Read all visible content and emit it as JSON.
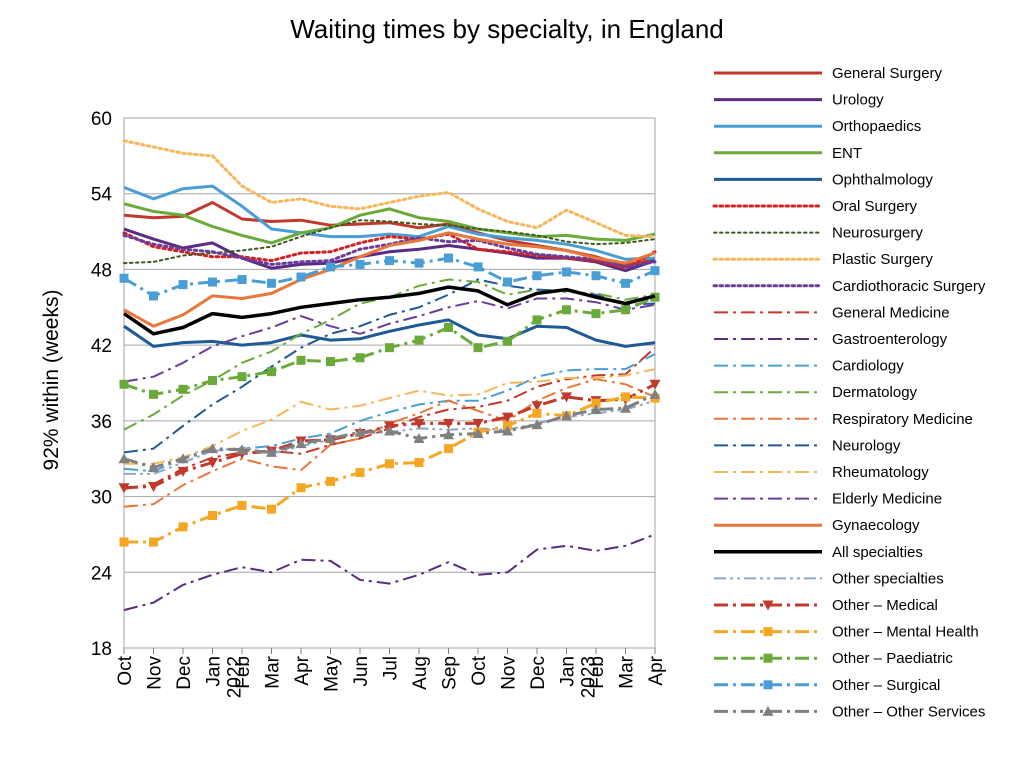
{
  "chart_data": {
    "type": "line",
    "title": "Waiting times by specialty, in England",
    "xlabel": "",
    "ylabel": "92% within (weeks)",
    "ylim": [
      18,
      60
    ],
    "yticks": [
      18,
      24,
      30,
      36,
      42,
      48,
      54,
      60
    ],
    "grid": "horizontal",
    "legend": "right",
    "x": [
      "Oct",
      "Nov",
      "Dec",
      "Jan",
      "Feb",
      "Mar",
      "Apr",
      "May",
      "Jun",
      "Jul",
      "Aug",
      "Sep",
      "Oct",
      "Nov",
      "Dec",
      "Jan",
      "Feb",
      "Mar",
      "Apr"
    ],
    "year_labels": [
      {
        "index": 3,
        "label": "2022"
      },
      {
        "index": 15,
        "label": "2023"
      }
    ],
    "series": [
      {
        "name": "General  Surgery",
        "color": "#c0392b",
        "style": "solid",
        "width": 3,
        "values": [
          52.3,
          52.1,
          52.2,
          53.3,
          52.0,
          51.8,
          51.9,
          51.5,
          51.6,
          51.7,
          51.3,
          51.6,
          50.9,
          50.3,
          49.9,
          49.5,
          49.0,
          48.3,
          48.8
        ]
      },
      {
        "name": "Urology",
        "color": "#5b2c83",
        "style": "solid",
        "width": 3,
        "values": [
          51.2,
          50.4,
          49.7,
          50.1,
          48.9,
          48.1,
          48.4,
          48.5,
          49.0,
          49.4,
          49.6,
          49.9,
          49.6,
          49.3,
          48.9,
          48.9,
          48.6,
          47.9,
          48.7
        ]
      },
      {
        "name": "Orthopaedics",
        "color": "#4a9ed6",
        "style": "solid",
        "width": 3,
        "values": [
          54.5,
          53.6,
          54.4,
          54.6,
          53.0,
          51.2,
          50.9,
          50.6,
          50.6,
          50.8,
          50.6,
          51.4,
          50.8,
          50.5,
          50.3,
          50.0,
          49.5,
          48.8,
          48.9
        ]
      },
      {
        "name": "ENT",
        "color": "#6aaa3a",
        "style": "solid",
        "width": 3,
        "values": [
          53.2,
          52.6,
          52.3,
          51.4,
          50.7,
          50.1,
          50.9,
          51.3,
          52.3,
          52.8,
          52.1,
          51.8,
          51.2,
          50.9,
          50.6,
          50.7,
          50.4,
          50.3,
          50.8
        ]
      },
      {
        "name": "Ophthalmology",
        "color": "#1f5a96",
        "style": "solid",
        "width": 3,
        "values": [
          43.5,
          41.9,
          42.2,
          42.3,
          42.0,
          42.2,
          42.8,
          42.4,
          42.5,
          43.1,
          43.6,
          44.0,
          42.8,
          42.5,
          43.5,
          43.4,
          42.4,
          41.9,
          42.2
        ]
      },
      {
        "name": "Oral  Surgery",
        "color": "#d42020",
        "style": "dot",
        "width": 3,
        "values": [
          50.9,
          49.8,
          49.4,
          49.0,
          49.0,
          48.7,
          49.3,
          49.4,
          50.1,
          50.6,
          50.4,
          50.8,
          49.6,
          49.4,
          49.1,
          48.9,
          48.7,
          48.1,
          49.4
        ]
      },
      {
        "name": "Neurosurgery",
        "color": "#3d5a1e",
        "style": "dot",
        "width": 2,
        "values": [
          48.5,
          48.6,
          49.1,
          49.3,
          49.5,
          49.8,
          50.6,
          51.3,
          51.9,
          51.8,
          51.6,
          51.5,
          51.2,
          51.0,
          50.7,
          50.2,
          50.0,
          50.1,
          50.4
        ]
      },
      {
        "name": "Plastic  Surgery",
        "color": "#f5b75a",
        "style": "dot",
        "width": 3,
        "values": [
          58.2,
          57.7,
          57.2,
          57.0,
          54.6,
          53.3,
          53.6,
          53.0,
          52.8,
          53.3,
          53.8,
          54.1,
          52.8,
          51.8,
          51.3,
          52.7,
          51.7,
          50.7,
          50.6
        ]
      },
      {
        "name": "Cardiothoracic  Surgery",
        "color": "#6a3d9a",
        "style": "dot",
        "width": 3,
        "values": [
          50.7,
          50.0,
          49.6,
          49.4,
          48.9,
          48.4,
          48.6,
          48.7,
          49.6,
          50.0,
          50.5,
          50.2,
          50.3,
          49.7,
          49.2,
          49.0,
          48.8,
          48.2,
          48.6
        ]
      },
      {
        "name": "General  Medicine",
        "color": "#c0392b",
        "style": "dashdot",
        "width": 2,
        "values": [
          30.6,
          31.0,
          32.2,
          33.1,
          33.5,
          33.6,
          33.4,
          34.1,
          34.6,
          35.4,
          36.3,
          36.9,
          37.1,
          37.6,
          38.7,
          39.3,
          39.6,
          39.7,
          41.8
        ]
      },
      {
        "name": "Gastroenterology",
        "color": "#5b2c83",
        "style": "dashdot",
        "width": 2,
        "values": [
          21.0,
          21.6,
          23.0,
          23.8,
          24.4,
          24.0,
          25.0,
          24.9,
          23.4,
          23.1,
          23.8,
          24.8,
          23.8,
          24.0,
          25.8,
          26.1,
          25.7,
          26.1,
          27.0
        ]
      },
      {
        "name": "Cardiology",
        "color": "#4a9ed6",
        "style": "dashdot",
        "width": 2,
        "values": [
          32.2,
          32.0,
          33.0,
          33.6,
          33.8,
          34.0,
          34.6,
          35.0,
          36.0,
          36.7,
          37.3,
          37.6,
          37.6,
          38.4,
          39.5,
          40.0,
          40.1,
          40.1,
          41.3
        ]
      },
      {
        "name": "Dermatology",
        "color": "#6aaa3a",
        "style": "dashdot",
        "width": 2,
        "values": [
          35.3,
          36.5,
          38.0,
          39.2,
          40.6,
          41.5,
          42.9,
          44.0,
          45.3,
          45.8,
          46.7,
          47.2,
          47.0,
          46.0,
          46.4,
          46.2,
          46.1,
          45.6,
          46.0
        ]
      },
      {
        "name": "Respiratory  Medicine",
        "color": "#e9763a",
        "style": "dashdot",
        "width": 2,
        "values": [
          29.2,
          29.4,
          30.9,
          32.0,
          33.0,
          32.4,
          32.1,
          34.1,
          34.6,
          35.8,
          36.6,
          37.6,
          36.8,
          36.0,
          37.6,
          38.6,
          39.3,
          38.9,
          37.9
        ]
      },
      {
        "name": "Neurology",
        "color": "#1f5a96",
        "style": "dashdot",
        "width": 2,
        "values": [
          33.5,
          33.8,
          35.6,
          37.3,
          38.7,
          40.3,
          41.8,
          42.9,
          43.5,
          44.4,
          45.0,
          46.0,
          47.2,
          46.7,
          46.4,
          46.3,
          46.0,
          45.2,
          45.3
        ]
      },
      {
        "name": "Rheumatology",
        "color": "#f5b75a",
        "style": "dashdot",
        "width": 2,
        "values": [
          32.6,
          32.6,
          33.1,
          34.0,
          35.2,
          36.1,
          37.5,
          36.9,
          37.2,
          37.8,
          38.4,
          38.0,
          38.1,
          39.0,
          39.1,
          39.4,
          39.4,
          39.6,
          40.1
        ]
      },
      {
        "name": "Elderly  Medicine",
        "color": "#6a3d9a",
        "style": "dashdot",
        "width": 2,
        "values": [
          39.1,
          39.5,
          40.6,
          41.9,
          42.7,
          43.4,
          44.3,
          43.5,
          42.9,
          43.7,
          44.3,
          45.0,
          45.5,
          44.9,
          45.7,
          45.7,
          45.4,
          44.8,
          45.2
        ]
      },
      {
        "name": "Gynaecology",
        "color": "#e9763a",
        "style": "solid",
        "width": 3,
        "values": [
          44.8,
          43.5,
          44.4,
          45.9,
          45.7,
          46.1,
          47.2,
          48.0,
          49.0,
          49.9,
          50.3,
          50.9,
          50.4,
          50.0,
          49.8,
          49.5,
          48.9,
          48.5,
          49.3
        ]
      },
      {
        "name": "All  specialties",
        "color": "#000000",
        "style": "solid",
        "width": 3.5,
        "values": [
          44.5,
          42.9,
          43.4,
          44.5,
          44.2,
          44.5,
          45.0,
          45.3,
          45.6,
          45.8,
          46.1,
          46.6,
          46.3,
          45.2,
          46.1,
          46.4,
          45.8,
          45.3,
          45.9
        ]
      },
      {
        "name": "Other  specialties",
        "color": "#8ea6c9",
        "style": "dashdotdot",
        "width": 2,
        "values": [
          31.8,
          31.8,
          32.7,
          33.6,
          33.9,
          33.4,
          34.0,
          34.5,
          35.0,
          35.1,
          35.4,
          35.3,
          35.4,
          35.3,
          35.8,
          36.3,
          36.6,
          36.9,
          37.6
        ]
      },
      {
        "name": "Other  –  Medical",
        "color": "#c0392b",
        "style": "dashdot",
        "width": 3,
        "marker": "triangle-down",
        "values": [
          30.7,
          30.8,
          32.0,
          32.7,
          33.4,
          33.6,
          34.4,
          34.5,
          35.0,
          35.6,
          35.8,
          35.8,
          35.8,
          36.3,
          37.2,
          37.9,
          37.6,
          37.7,
          38.9
        ]
      },
      {
        "name": "Other  –  Mental Health",
        "color": "#f5a623",
        "style": "dashdot",
        "width": 3,
        "marker": "square",
        "values": [
          26.4,
          26.4,
          27.6,
          28.5,
          29.3,
          29.0,
          30.7,
          31.2,
          31.9,
          32.6,
          32.7,
          33.8,
          35.1,
          35.6,
          36.6,
          36.4,
          37.4,
          37.9,
          37.8
        ]
      },
      {
        "name": "Other  –  Paediatric",
        "color": "#6aaa3a",
        "style": "dashdot",
        "width": 3,
        "marker": "square",
        "values": [
          38.9,
          38.1,
          38.5,
          39.2,
          39.5,
          39.9,
          40.8,
          40.7,
          41.0,
          41.8,
          42.4,
          43.4,
          41.8,
          42.3,
          44.0,
          44.8,
          44.5,
          44.8,
          45.8
        ]
      },
      {
        "name": "Other  –  Surgical",
        "color": "#4a9ed6",
        "style": "dashdot",
        "width": 3,
        "marker": "square",
        "values": [
          47.3,
          45.9,
          46.8,
          47.0,
          47.2,
          46.9,
          47.4,
          48.2,
          48.4,
          48.7,
          48.5,
          48.9,
          48.2,
          47.0,
          47.5,
          47.8,
          47.5,
          46.9,
          47.9
        ]
      },
      {
        "name": "Other  –  Other Services",
        "color": "#808080",
        "style": "dashdot",
        "width": 3,
        "marker": "triangle-up",
        "values": [
          33.0,
          32.3,
          33.0,
          33.8,
          33.7,
          33.5,
          34.2,
          34.6,
          35.1,
          35.2,
          34.6,
          34.9,
          35.0,
          35.2,
          35.7,
          36.4,
          36.9,
          37.0,
          38.1
        ]
      }
    ]
  }
}
